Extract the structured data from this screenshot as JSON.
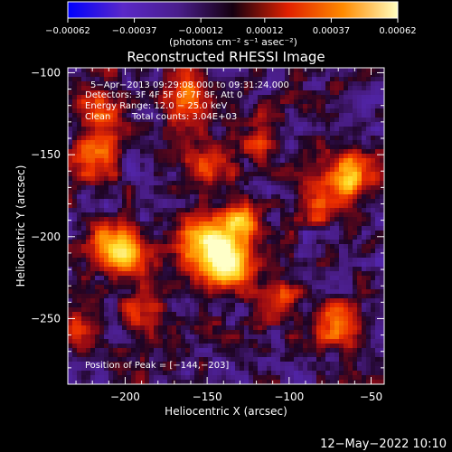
{
  "chart_data": {
    "type": "heatmap",
    "title": "Reconstructed RHESSI Image",
    "xlabel": "Heliocentric X (arcsec)",
    "ylabel": "Heliocentric Y (arcsec)",
    "xlim": [
      -235,
      -42
    ],
    "ylim": [
      -290,
      -97
    ],
    "x_ticks": [
      {
        "value": -200,
        "label": "−200"
      },
      {
        "value": -150,
        "label": "−150"
      },
      {
        "value": -100,
        "label": "−100"
      },
      {
        "value": -50,
        "label": "−50"
      }
    ],
    "y_ticks": [
      {
        "value": -100,
        "label": "−100"
      },
      {
        "value": -150,
        "label": "−150"
      },
      {
        "value": -200,
        "label": "−200"
      },
      {
        "value": -250,
        "label": "−250"
      }
    ],
    "colorbar": {
      "range": [
        -0.00062,
        0.00062
      ],
      "tick_values": [
        -0.00062,
        -0.00037,
        -0.00012,
        0.00012,
        0.00037,
        0.00062
      ],
      "tick_labels": [
        "−0.00062",
        "−0.00037",
        "−0.00012",
        "0.00012",
        "0.00037",
        "0.00062"
      ],
      "units": "(photons cm⁻² s⁻¹ asec⁻²)",
      "colors": [
        "#0000ff",
        "#5a28c8",
        "#4a1e8c",
        "#150010",
        "#e02000",
        "#ff8a00",
        "#ffffc0"
      ]
    },
    "annotations": {
      "time": "5−Apr−2013 09:29:08.000 to 09:31:24.000",
      "detectors": "Detectors: 3F 4F 5F 6F 7F 8F, Att 0",
      "energy": "Energy Range: 12.0 − 25.0 keV",
      "method": "Clean",
      "counts": "Total counts: 3.04E+03",
      "peak": "Position of Peak = [−144,−203]"
    },
    "hotspots": [
      {
        "x": -148,
        "y": -203,
        "amplitude": 1.0,
        "sigma": 12
      },
      {
        "x": -135,
        "y": -218,
        "amplitude": 0.8,
        "sigma": 10
      },
      {
        "x": -128,
        "y": -190,
        "amplitude": 0.65,
        "sigma": 8
      },
      {
        "x": -208,
        "y": -207,
        "amplitude": 0.85,
        "sigma": 10
      },
      {
        "x": -195,
        "y": -215,
        "amplitude": 0.5,
        "sigma": 9
      },
      {
        "x": -62,
        "y": -163,
        "amplitude": 0.75,
        "sigma": 10
      },
      {
        "x": -78,
        "y": -180,
        "amplitude": 0.45,
        "sigma": 10
      },
      {
        "x": -218,
        "y": -150,
        "amplitude": 0.6,
        "sigma": 10
      },
      {
        "x": -215,
        "y": -125,
        "amplitude": 0.45,
        "sigma": 10
      },
      {
        "x": -163,
        "y": -115,
        "amplitude": 0.6,
        "sigma": 11
      },
      {
        "x": -150,
        "y": -155,
        "amplitude": 0.45,
        "sigma": 9
      },
      {
        "x": -70,
        "y": -253,
        "amplitude": 0.65,
        "sigma": 9
      },
      {
        "x": -105,
        "y": -240,
        "amplitude": 0.4,
        "sigma": 10
      },
      {
        "x": -190,
        "y": -245,
        "amplitude": 0.35,
        "sigma": 9
      },
      {
        "x": -228,
        "y": -255,
        "amplitude": 0.4,
        "sigma": 8
      },
      {
        "x": -118,
        "y": -140,
        "amplitude": 0.4,
        "sigma": 9
      }
    ]
  },
  "footer": {
    "timestamp": "12−May−2022 10:10"
  }
}
